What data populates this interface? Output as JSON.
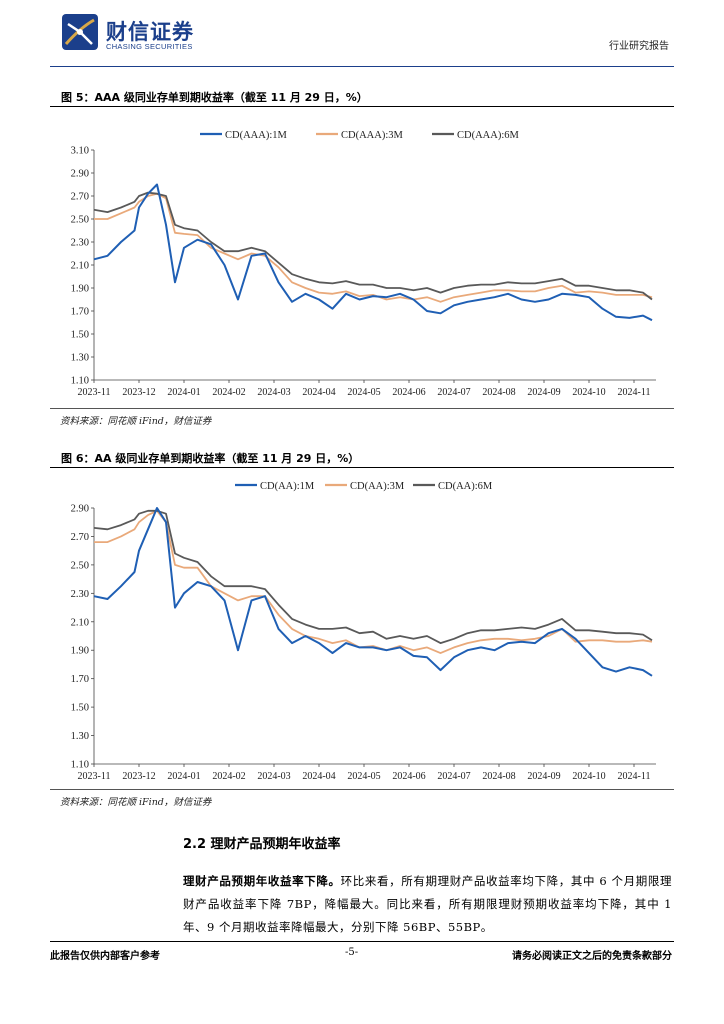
{
  "header": {
    "logo_cn": "财信证券",
    "logo_en": "CHASING SECURITIES",
    "report_type": "行业研究报告"
  },
  "figure5": {
    "title": "图 5：AAA 级同业存单到期收益率（截至 11 月 29 日，%）",
    "source": "资料来源：同花顺 iFind，财信证券"
  },
  "figure6": {
    "title": "图 6：AA 级同业存单到期收益率（截至 11 月 29 日，%）",
    "source": "资料来源：同花顺 iFind，财信证券"
  },
  "chart_data": [
    {
      "type": "line",
      "title": "AAA 级同业存单到期收益率",
      "xlabel": "",
      "ylabel": "",
      "ylim": [
        1.1,
        3.1
      ],
      "yticks": [
        "1.10",
        "1.30",
        "1.50",
        "1.70",
        "1.90",
        "2.10",
        "2.30",
        "2.50",
        "2.70",
        "2.90",
        "3.10"
      ],
      "xticks": [
        "2023-11",
        "2023-12",
        "2024-01",
        "2024-02",
        "2024-03",
        "2024-04",
        "2024-05",
        "2024-06",
        "2024-07",
        "2024-08",
        "2024-09",
        "2024-10",
        "2024-11"
      ],
      "x": [
        0,
        0.3,
        0.6,
        0.9,
        1.0,
        1.2,
        1.4,
        1.6,
        1.8,
        2.0,
        2.3,
        2.6,
        2.9,
        3.2,
        3.5,
        3.8,
        4.1,
        4.4,
        4.7,
        5.0,
        5.3,
        5.6,
        5.9,
        6.2,
        6.5,
        6.8,
        7.1,
        7.4,
        7.7,
        8.0,
        8.3,
        8.6,
        8.9,
        9.2,
        9.5,
        9.8,
        10.1,
        10.4,
        10.7,
        11.0,
        11.3,
        11.6,
        11.9,
        12.2,
        12.4
      ],
      "legend_position": "top-center",
      "series": [
        {
          "name": "CD(AAA):1M",
          "color": "#1f5fb4",
          "values": [
            2.15,
            2.18,
            2.3,
            2.4,
            2.6,
            2.72,
            2.8,
            2.45,
            1.95,
            2.25,
            2.32,
            2.28,
            2.1,
            1.8,
            2.18,
            2.2,
            1.95,
            1.78,
            1.85,
            1.8,
            1.72,
            1.85,
            1.8,
            1.83,
            1.82,
            1.85,
            1.8,
            1.7,
            1.68,
            1.75,
            1.78,
            1.8,
            1.82,
            1.85,
            1.8,
            1.78,
            1.8,
            1.85,
            1.84,
            1.82,
            1.72,
            1.65,
            1.64,
            1.66,
            1.62
          ]
        },
        {
          "name": "CD(AAA):3M",
          "color": "#e9a97a",
          "values": [
            2.5,
            2.5,
            2.55,
            2.6,
            2.65,
            2.7,
            2.72,
            2.68,
            2.38,
            2.37,
            2.36,
            2.25,
            2.2,
            2.15,
            2.2,
            2.18,
            2.08,
            1.95,
            1.9,
            1.86,
            1.85,
            1.87,
            1.83,
            1.84,
            1.8,
            1.82,
            1.8,
            1.82,
            1.78,
            1.82,
            1.84,
            1.86,
            1.88,
            1.88,
            1.87,
            1.87,
            1.9,
            1.92,
            1.86,
            1.87,
            1.86,
            1.84,
            1.84,
            1.84,
            1.82
          ]
        },
        {
          "name": "CD(AAA):6M",
          "color": "#595959",
          "values": [
            2.58,
            2.56,
            2.6,
            2.65,
            2.7,
            2.73,
            2.72,
            2.7,
            2.45,
            2.42,
            2.4,
            2.3,
            2.22,
            2.22,
            2.25,
            2.22,
            2.12,
            2.02,
            1.98,
            1.95,
            1.94,
            1.96,
            1.93,
            1.93,
            1.9,
            1.9,
            1.88,
            1.9,
            1.86,
            1.9,
            1.92,
            1.93,
            1.93,
            1.95,
            1.94,
            1.94,
            1.96,
            1.98,
            1.92,
            1.92,
            1.9,
            1.88,
            1.88,
            1.86,
            1.8
          ]
        }
      ]
    },
    {
      "type": "line",
      "title": "AA 级同业存单到期收益率",
      "xlabel": "",
      "ylabel": "",
      "ylim": [
        1.1,
        2.9
      ],
      "yticks": [
        "1.10",
        "1.30",
        "1.50",
        "1.70",
        "1.90",
        "2.10",
        "2.30",
        "2.50",
        "2.70",
        "2.90"
      ],
      "xticks": [
        "2023-11",
        "2023-12",
        "2024-01",
        "2024-02",
        "2024-03",
        "2024-04",
        "2024-05",
        "2024-06",
        "2024-07",
        "2024-08",
        "2024-09",
        "2024-10",
        "2024-11"
      ],
      "x": [
        0,
        0.3,
        0.6,
        0.9,
        1.0,
        1.2,
        1.4,
        1.6,
        1.8,
        2.0,
        2.3,
        2.6,
        2.9,
        3.2,
        3.5,
        3.8,
        4.1,
        4.4,
        4.7,
        5.0,
        5.3,
        5.6,
        5.9,
        6.2,
        6.5,
        6.8,
        7.1,
        7.4,
        7.7,
        8.0,
        8.3,
        8.6,
        8.9,
        9.2,
        9.5,
        9.8,
        10.1,
        10.4,
        10.7,
        11.0,
        11.3,
        11.6,
        11.9,
        12.2,
        12.4
      ],
      "legend_position": "top-center",
      "series": [
        {
          "name": "CD(AA):1M",
          "color": "#1f5fb4",
          "values": [
            2.28,
            2.26,
            2.35,
            2.45,
            2.6,
            2.75,
            2.9,
            2.8,
            2.2,
            2.3,
            2.38,
            2.35,
            2.25,
            1.9,
            2.25,
            2.28,
            2.05,
            1.95,
            2.0,
            1.95,
            1.88,
            1.95,
            1.92,
            1.92,
            1.9,
            1.92,
            1.86,
            1.85,
            1.76,
            1.85,
            1.9,
            1.92,
            1.9,
            1.95,
            1.96,
            1.95,
            2.02,
            2.05,
            1.98,
            1.88,
            1.78,
            1.75,
            1.78,
            1.76,
            1.72
          ]
        },
        {
          "name": "CD(AA):3M",
          "color": "#e9a97a",
          "values": [
            2.66,
            2.66,
            2.7,
            2.75,
            2.8,
            2.85,
            2.88,
            2.8,
            2.5,
            2.48,
            2.48,
            2.35,
            2.3,
            2.25,
            2.28,
            2.28,
            2.15,
            2.05,
            2.0,
            1.98,
            1.95,
            1.97,
            1.92,
            1.93,
            1.9,
            1.93,
            1.9,
            1.92,
            1.88,
            1.92,
            1.95,
            1.97,
            1.98,
            1.98,
            1.97,
            1.98,
            2.0,
            2.05,
            1.96,
            1.97,
            1.97,
            1.96,
            1.96,
            1.97,
            1.96
          ]
        },
        {
          "name": "CD(AA):6M",
          "color": "#595959",
          "values": [
            2.76,
            2.75,
            2.78,
            2.82,
            2.86,
            2.88,
            2.88,
            2.86,
            2.58,
            2.55,
            2.52,
            2.42,
            2.35,
            2.35,
            2.35,
            2.33,
            2.22,
            2.12,
            2.08,
            2.05,
            2.05,
            2.06,
            2.02,
            2.03,
            1.98,
            2.0,
            1.98,
            2.0,
            1.95,
            1.98,
            2.02,
            2.04,
            2.04,
            2.05,
            2.06,
            2.05,
            2.08,
            2.12,
            2.04,
            2.04,
            2.03,
            2.02,
            2.02,
            2.01,
            1.97
          ]
        }
      ]
    }
  ],
  "section": {
    "heading": "2.2 理财产品预期年收益率",
    "lead": "理财产品预期年收益率下降。",
    "body": "环比来看，所有期理财产品收益率均下降，其中 6 个月期限理财产品收益率下降 7BP，降幅最大。同比来看，所有期限理财预期收益率均下降，其中 1 年、9 个月期收益率降幅最大，分别下降 56BP、55BP。"
  },
  "footer": {
    "left": "此报告仅供内部客户参考",
    "page": "-5-",
    "right": "请务必阅读正文之后的免责条款部分"
  }
}
